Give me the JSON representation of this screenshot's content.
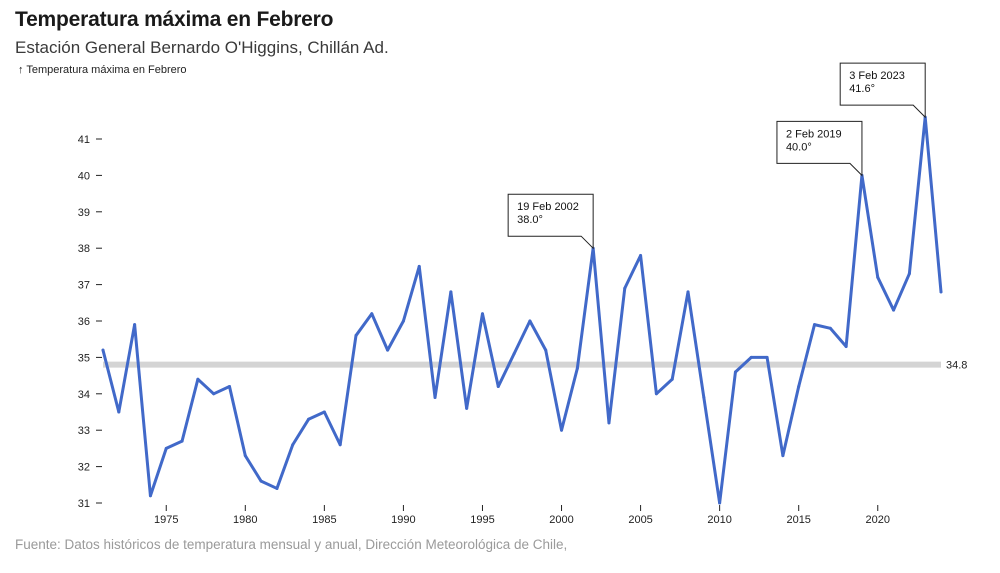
{
  "header": {
    "title": "Temperatura máxima en Febrero",
    "subtitle": "Estación General Bernardo O'Higgins, Chillán Ad."
  },
  "footer": {
    "source": "Fuente: Datos históricos de temperatura mensual y anual, Dirección Meteorológica de Chile,"
  },
  "chart_data": {
    "type": "line",
    "ylabel": "↑ Temperatura máxima en Febrero",
    "xlim": [
      1971,
      2024
    ],
    "ylim": [
      31,
      41
    ],
    "grid": false,
    "x_ticks": [
      1975,
      1980,
      1985,
      1990,
      1995,
      2000,
      2005,
      2010,
      2015,
      2020
    ],
    "y_ticks": [
      31,
      32,
      33,
      34,
      35,
      36,
      37,
      38,
      39,
      40,
      41
    ],
    "series": [
      {
        "color": "#4169c9",
        "x": [
          1971,
          1972,
          1973,
          1974,
          1975,
          1976,
          1977,
          1978,
          1979,
          1980,
          1981,
          1982,
          1983,
          1984,
          1985,
          1986,
          1987,
          1988,
          1989,
          1990,
          1991,
          1992,
          1993,
          1994,
          1995,
          1996,
          1997,
          1998,
          1999,
          2000,
          2001,
          2002,
          2003,
          2004,
          2005,
          2006,
          2007,
          2008,
          2009,
          2010,
          2011,
          2012,
          2013,
          2014,
          2015,
          2016,
          2017,
          2018,
          2019,
          2020,
          2021,
          2022,
          2023,
          2024
        ],
        "y": [
          35.2,
          33.5,
          35.9,
          31.2,
          32.5,
          32.7,
          34.4,
          34.0,
          34.2,
          32.3,
          31.6,
          31.4,
          32.6,
          33.3,
          33.5,
          32.6,
          35.6,
          36.2,
          35.2,
          36.0,
          37.5,
          33.9,
          36.8,
          33.6,
          36.2,
          34.2,
          35.1,
          36.0,
          35.2,
          33.0,
          34.7,
          38.0,
          33.2,
          36.9,
          37.8,
          34.0,
          34.4,
          36.8,
          33.9,
          31.0,
          34.6,
          35.0,
          35.0,
          32.3,
          34.2,
          35.9,
          35.8,
          35.3,
          40.0,
          37.2,
          36.3,
          37.3,
          41.6,
          36.8
        ]
      }
    ],
    "reference_line": {
      "value": 34.8,
      "label": "34.8",
      "color": "#d4d4d4"
    },
    "annotations": [
      {
        "x": 2002,
        "y": 38.0,
        "line1": "19 Feb 2002",
        "line2": "38.0°"
      },
      {
        "x": 2019,
        "y": 40.0,
        "line1": "2 Feb 2019",
        "line2": "40.0°"
      },
      {
        "x": 2023,
        "y": 41.6,
        "line1": "3 Feb 2023",
        "line2": "41.6°"
      }
    ]
  }
}
